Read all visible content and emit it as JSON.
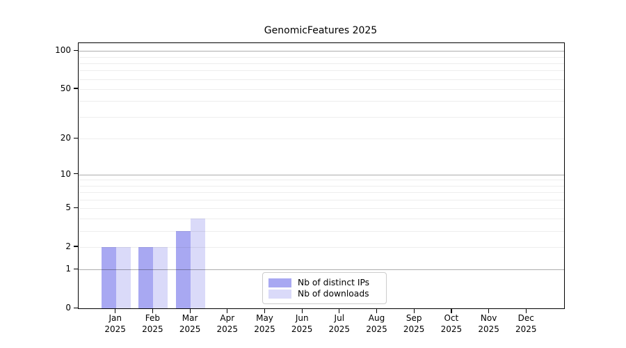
{
  "chart_data": {
    "type": "bar",
    "title": "GenomicFeatures 2025",
    "x_year": "2025",
    "categories": [
      "Jan",
      "Feb",
      "Mar",
      "Apr",
      "May",
      "Jun",
      "Jul",
      "Aug",
      "Sep",
      "Oct",
      "Nov",
      "Dec"
    ],
    "series": [
      {
        "name": "Nb of distinct IPs",
        "color": "#a8a8f2",
        "values": [
          2,
          2,
          3,
          0,
          0,
          0,
          0,
          0,
          0,
          0,
          0,
          0
        ]
      },
      {
        "name": "Nb of downloads",
        "color": "#dadaf9",
        "values": [
          2,
          2,
          4,
          0,
          0,
          0,
          0,
          0,
          0,
          0,
          0,
          0
        ]
      }
    ],
    "y_ticks": [
      0,
      1,
      2,
      5,
      10,
      20,
      50,
      100
    ],
    "y_scale": "log1p",
    "ylim": [
      0,
      115
    ],
    "xlabel": "",
    "ylabel": "",
    "major_gridlines": [
      1,
      10,
      100
    ],
    "minor_gridlines": [
      2,
      3,
      4,
      5,
      6,
      7,
      8,
      9,
      20,
      30,
      40,
      50,
      60,
      70,
      80,
      90
    ],
    "grid": true,
    "legend_position": "lower center",
    "colors": {
      "axis": "#000000",
      "major_grid": "rgba(0,0,0,0.32)",
      "minor_grid": "rgba(0,0,0,0.07)",
      "text": "#000000",
      "legend_border": "#cccccc",
      "background": "#ffffff"
    }
  }
}
